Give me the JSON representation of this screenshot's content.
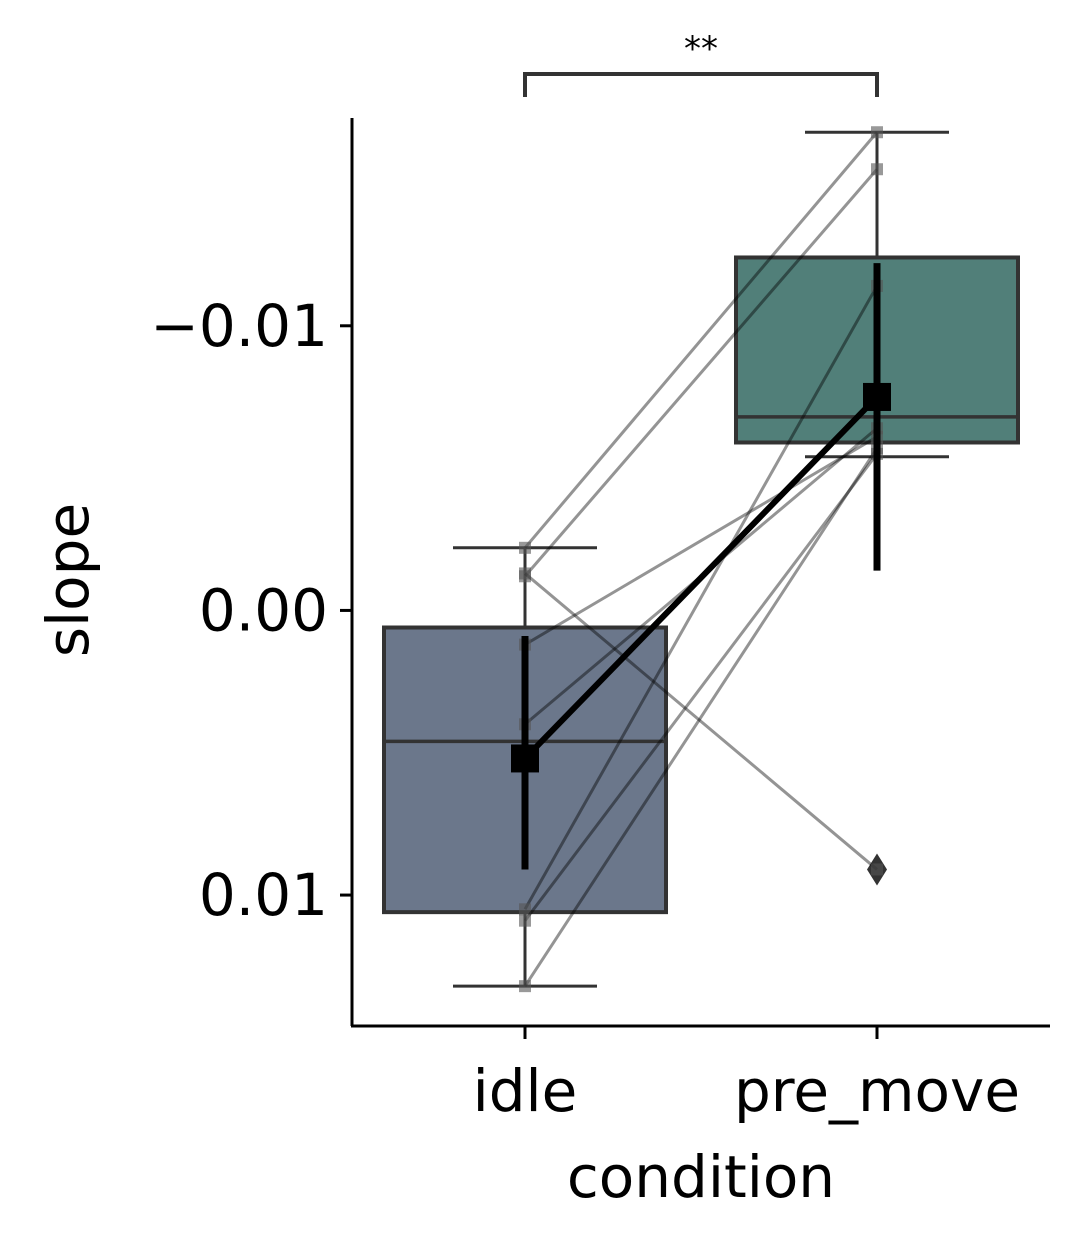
{
  "chart_data": {
    "type": "box",
    "xlabel": "condition",
    "ylabel": "slope",
    "y_axis_inverted": true,
    "ylim": [
      -0.0173,
      0.0146
    ],
    "categories": [
      "idle",
      "pre_move"
    ],
    "y_ticks": [
      -0.01,
      0.0,
      0.01
    ],
    "y_tick_labels": [
      "−0.01",
      "0.00",
      "0.01"
    ],
    "significance": {
      "between": [
        "idle",
        "pre_move"
      ],
      "label": "**"
    },
    "colors": {
      "idle": "#6b778b",
      "pre_move": "#517f79",
      "edge": "#333333",
      "mean": "#000000"
    },
    "boxes": [
      {
        "category": "idle",
        "whisker_low": -0.0022,
        "q1": 0.0006,
        "median": 0.0046,
        "q3": 0.0106,
        "whisker_high": 0.0132,
        "outliers": []
      },
      {
        "category": "pre_move",
        "whisker_low": -0.0168,
        "q1": -0.0124,
        "median": -0.0068,
        "q3": -0.0059,
        "whisker_high": -0.0054,
        "outliers": [
          0.0091
        ]
      }
    ],
    "mean": {
      "values": [
        0.0052,
        -0.0075
      ],
      "ci": [
        [
          0.0009,
          0.0091
        ],
        [
          -0.0122,
          -0.0014
        ]
      ]
    },
    "paired_points": [
      [
        -0.0022,
        -0.0168
      ],
      [
        -0.0012,
        -0.0155
      ],
      [
        0.0012,
        -0.0061
      ],
      [
        0.004,
        -0.0064
      ],
      [
        0.0105,
        -0.0114
      ],
      [
        0.0109,
        -0.0055
      ],
      [
        0.0132,
        -0.0057
      ],
      [
        -0.0013,
        0.0091
      ]
    ]
  }
}
